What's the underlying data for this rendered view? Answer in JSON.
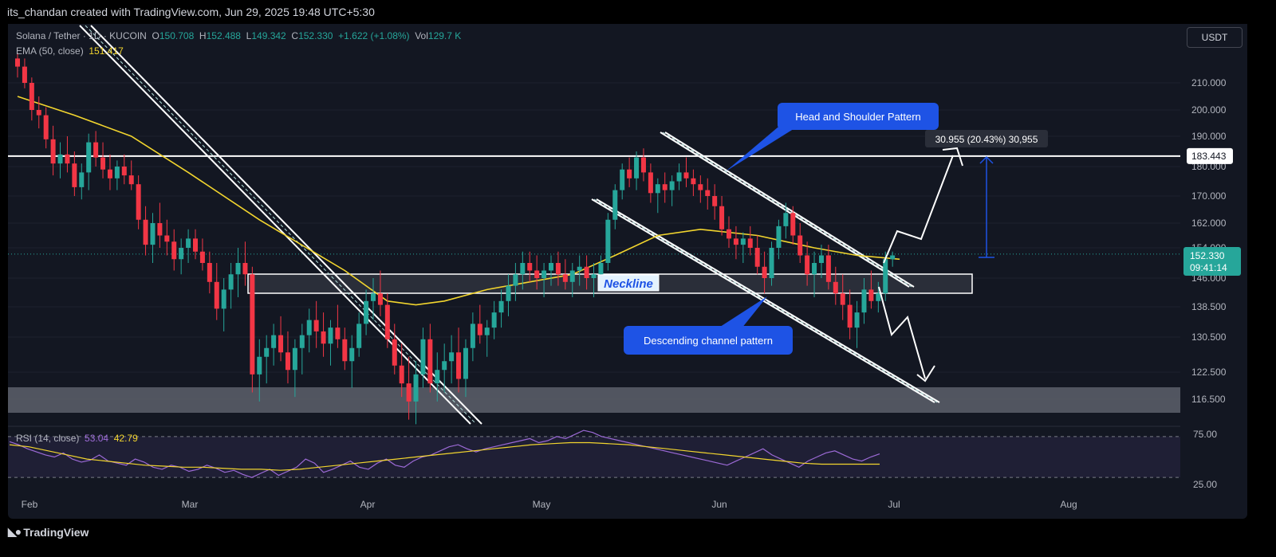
{
  "header": {
    "attribution": "its_chandan created with TradingView.com, Jun 29, 2025 19:48 UTC+5:30"
  },
  "footer": {
    "brand": "TradingView"
  },
  "legend": {
    "symbol": "Solana / Tether · 1D · KUCOIN",
    "open_label": "O",
    "open": "150.708",
    "high_label": "H",
    "high": "152.488",
    "low_label": "L",
    "low": "149.342",
    "close_label": "C",
    "close": "152.330",
    "change": "+1.622 (+1.08%)",
    "vol_label": "Vol",
    "vol": "129.7 K",
    "ema_label": "EMA (50, close)",
    "ema_value": "151.417",
    "rsi_label": "RSI (14, close)",
    "rsi_value": "53.04",
    "rsi_ma_value": "42.79"
  },
  "currency_button": "USDT",
  "colors": {
    "up": "#26a69a",
    "down": "#f23645",
    "ema": "#f2d52e",
    "rsi": "#9c6ad6",
    "rsi_ma": "#f2d52e",
    "annotation": "#1e53e5",
    "background": "#131722"
  },
  "chart_data": {
    "type": "candlestick",
    "price_axis": {
      "min": 110,
      "max": 222,
      "ticks": [
        "210.000",
        "200.000",
        "190.000",
        "180.000",
        "170.000",
        "162.000",
        "154.000",
        "146.000",
        "138.500",
        "130.500",
        "122.500",
        "116.500"
      ]
    },
    "time_axis": {
      "labels": [
        "Feb",
        "Mar",
        "Apr",
        "May",
        "Jun",
        "Jul",
        "Aug"
      ]
    },
    "last_price": "152.330",
    "countdown": "09:41:14",
    "horizontal_level": "183.443",
    "measure_label": "30.955 (20.43%) 30,955",
    "annotations": {
      "head_shoulder": "Head and Shoulder Pattern",
      "neckline": "Neckline",
      "descending_channel": "Descending channel pattern"
    },
    "rsi_axis": {
      "ticks": [
        "75.00",
        "25.00"
      ],
      "upper": 70,
      "lower": 30
    },
    "candles": [
      [
        219,
        221,
        212,
        216
      ],
      [
        216,
        219,
        208,
        210
      ],
      [
        210,
        212,
        196,
        200
      ],
      [
        200,
        205,
        193,
        198
      ],
      [
        198,
        201,
        186,
        189
      ],
      [
        189,
        194,
        177,
        181
      ],
      [
        181,
        188,
        176,
        184
      ],
      [
        184,
        190,
        178,
        181
      ],
      [
        181,
        185,
        170,
        173
      ],
      [
        173,
        181,
        169,
        178
      ],
      [
        178,
        191,
        172,
        188
      ],
      [
        188,
        192,
        180,
        183
      ],
      [
        183,
        188,
        176,
        179
      ],
      [
        179,
        184,
        172,
        176
      ],
      [
        176,
        182,
        172,
        180
      ],
      [
        180,
        184,
        174,
        177
      ],
      [
        177,
        182,
        172,
        174
      ],
      [
        174,
        177,
        160,
        163
      ],
      [
        163,
        167,
        152,
        155
      ],
      [
        155,
        165,
        150,
        162
      ],
      [
        162,
        168,
        154,
        158
      ],
      [
        158,
        163,
        152,
        156
      ],
      [
        156,
        160,
        148,
        151
      ],
      [
        151,
        157,
        147,
        154
      ],
      [
        154,
        160,
        150,
        157
      ],
      [
        157,
        160,
        151,
        153
      ],
      [
        153,
        157,
        148,
        150
      ],
      [
        150,
        153,
        142,
        145
      ],
      [
        145,
        150,
        135,
        138
      ],
      [
        138,
        146,
        132,
        143
      ],
      [
        143,
        150,
        138,
        147
      ],
      [
        147,
        154,
        141,
        150
      ],
      [
        150,
        156,
        144,
        147
      ],
      [
        147,
        149,
        118,
        122
      ],
      [
        122,
        130,
        116,
        126
      ],
      [
        126,
        131,
        120,
        128
      ],
      [
        128,
        134,
        124,
        131
      ],
      [
        131,
        136,
        125,
        127
      ],
      [
        127,
        132,
        120,
        123
      ],
      [
        123,
        130,
        117,
        128
      ],
      [
        128,
        134,
        122,
        131
      ],
      [
        131,
        138,
        127,
        135
      ],
      [
        135,
        140,
        128,
        132
      ],
      [
        132,
        137,
        126,
        129
      ],
      [
        129,
        135,
        124,
        133
      ],
      [
        133,
        139,
        128,
        130
      ],
      [
        130,
        133,
        123,
        125
      ],
      [
        125,
        131,
        119,
        128
      ],
      [
        128,
        137,
        126,
        134
      ],
      [
        134,
        143,
        131,
        140
      ],
      [
        140,
        146,
        135,
        142
      ],
      [
        142,
        148,
        136,
        139
      ],
      [
        139,
        142,
        128,
        130
      ],
      [
        130,
        134,
        122,
        124
      ],
      [
        124,
        129,
        117,
        120
      ],
      [
        120,
        126,
        112,
        116
      ],
      [
        116,
        125,
        111,
        122
      ],
      [
        122,
        133,
        119,
        130
      ],
      [
        130,
        134,
        118,
        120
      ],
      [
        120,
        127,
        116,
        123
      ],
      [
        123,
        129,
        118,
        125
      ],
      [
        125,
        131,
        120,
        127
      ],
      [
        127,
        133,
        118,
        121
      ],
      [
        121,
        130,
        117,
        128
      ],
      [
        128,
        137,
        125,
        134
      ],
      [
        134,
        139,
        129,
        131
      ],
      [
        131,
        135,
        126,
        133
      ],
      [
        133,
        140,
        130,
        137
      ],
      [
        137,
        143,
        133,
        140
      ],
      [
        140,
        147,
        136,
        144
      ],
      [
        144,
        150,
        140,
        147
      ],
      [
        147,
        153,
        143,
        150
      ],
      [
        150,
        153,
        145,
        148
      ],
      [
        148,
        152,
        143,
        146
      ],
      [
        146,
        150,
        141,
        148
      ],
      [
        148,
        152,
        144,
        150
      ],
      [
        150,
        153,
        144,
        147
      ],
      [
        147,
        151,
        143,
        145
      ],
      [
        145,
        150,
        141,
        148
      ],
      [
        148,
        152,
        144,
        149
      ],
      [
        149,
        152,
        143,
        146
      ],
      [
        146,
        150,
        141,
        147
      ],
      [
        147,
        152,
        144,
        150
      ],
      [
        150,
        165,
        148,
        163
      ],
      [
        163,
        174,
        160,
        172
      ],
      [
        172,
        181,
        169,
        179
      ],
      [
        179,
        183,
        173,
        176
      ],
      [
        176,
        185,
        172,
        183
      ],
      [
        183,
        186,
        175,
        178
      ],
      [
        178,
        181,
        168,
        171
      ],
      [
        171,
        176,
        165,
        174
      ],
      [
        174,
        178,
        168,
        172
      ],
      [
        172,
        177,
        167,
        175
      ],
      [
        175,
        181,
        172,
        178
      ],
      [
        178,
        183,
        173,
        176
      ],
      [
        176,
        179,
        170,
        174
      ],
      [
        174,
        177,
        168,
        172
      ],
      [
        172,
        176,
        166,
        170
      ],
      [
        170,
        174,
        163,
        167
      ],
      [
        167,
        170,
        158,
        160
      ],
      [
        160,
        164,
        154,
        157
      ],
      [
        157,
        161,
        151,
        155
      ],
      [
        155,
        159,
        150,
        157
      ],
      [
        157,
        161,
        152,
        154
      ],
      [
        154,
        158,
        147,
        149
      ],
      [
        149,
        153,
        142,
        146
      ],
      [
        146,
        156,
        144,
        154
      ],
      [
        154,
        163,
        151,
        161
      ],
      [
        161,
        168,
        157,
        165
      ],
      [
        165,
        167,
        155,
        158
      ],
      [
        158,
        162,
        150,
        152
      ],
      [
        152,
        156,
        144,
        147
      ],
      [
        147,
        153,
        141,
        150
      ],
      [
        150,
        155,
        146,
        152
      ],
      [
        152,
        155,
        143,
        145
      ],
      [
        145,
        149,
        139,
        142
      ],
      [
        142,
        147,
        135,
        139
      ],
      [
        139,
        143,
        130,
        133
      ],
      [
        133,
        140,
        128,
        137
      ],
      [
        137,
        146,
        134,
        143
      ],
      [
        143,
        148,
        138,
        140
      ],
      [
        140,
        145,
        137,
        142
      ],
      [
        142,
        153,
        140,
        151
      ],
      [
        151,
        153,
        149,
        152
      ]
    ],
    "ema50": [
      [
        0,
        205
      ],
      [
        8,
        198
      ],
      [
        16,
        190
      ],
      [
        24,
        178
      ],
      [
        34,
        163
      ],
      [
        46,
        148
      ],
      [
        52,
        140
      ],
      [
        56,
        139
      ],
      [
        60,
        140
      ],
      [
        66,
        143
      ],
      [
        72,
        145
      ],
      [
        78,
        147
      ],
      [
        84,
        152
      ],
      [
        90,
        158
      ],
      [
        96,
        160
      ],
      [
        104,
        158
      ],
      [
        112,
        154
      ],
      [
        118,
        152
      ],
      [
        124,
        151
      ]
    ],
    "rsi": [
      65,
      62,
      58,
      55,
      52,
      50,
      54,
      48,
      45,
      47,
      52,
      46,
      44,
      42,
      48,
      45,
      40,
      38,
      42,
      40,
      36,
      38,
      42,
      39,
      35,
      37,
      33,
      30,
      34,
      38,
      32,
      36,
      40,
      48,
      44,
      35,
      38,
      42,
      46,
      40,
      38,
      44,
      48,
      42,
      40,
      46,
      50,
      52,
      56,
      60,
      62,
      58,
      55,
      58,
      60,
      62,
      64,
      66,
      68,
      64,
      66,
      70,
      68,
      72,
      76,
      74,
      70,
      68,
      66,
      64,
      62,
      60,
      58,
      56,
      54,
      52,
      50,
      48,
      46,
      44,
      42,
      46,
      50,
      54,
      58,
      52,
      48,
      44,
      40,
      46,
      50,
      54,
      56,
      52,
      48,
      46,
      50,
      53
    ],
    "rsi_ma": [
      62,
      60,
      56,
      52,
      48,
      46,
      44,
      42,
      41,
      40,
      40,
      39,
      38,
      38,
      37,
      38,
      40,
      42,
      44,
      46,
      48,
      50,
      52,
      54,
      56,
      58,
      60,
      62,
      63,
      64,
      64,
      63,
      62,
      60,
      58,
      56,
      54,
      52,
      50,
      48,
      46,
      44,
      43,
      43,
      43,
      43
    ]
  }
}
